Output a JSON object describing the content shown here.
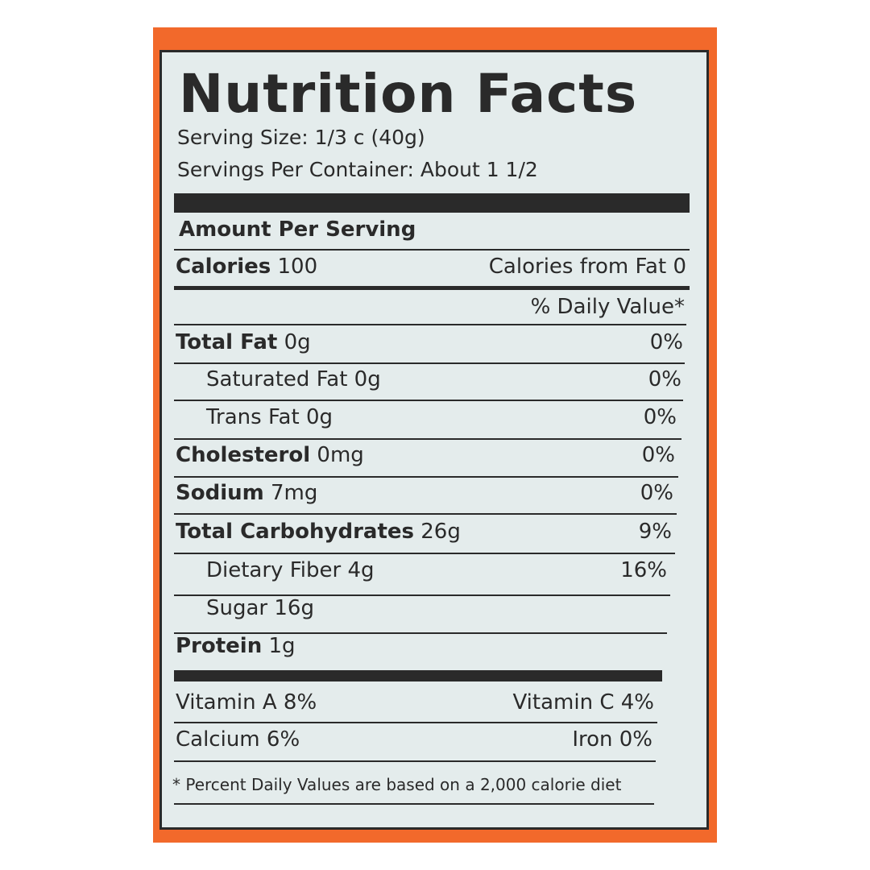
{
  "title": "Nutrition Facts",
  "serving_size": "Serving Size: 1/3 c (40g)",
  "servings_per_container": "Servings Per Container: About 1 1/2",
  "amount_per_serving": "Amount Per Serving",
  "calories": {
    "label": "Calories",
    "value": "100",
    "from_fat": "Calories from Fat 0"
  },
  "daily_value_header": "% Daily Value*",
  "nutrients": [
    {
      "label": "Total Fat",
      "amount": "0g",
      "dv": "0%"
    },
    {
      "label": "Saturated Fat",
      "amount": "0g",
      "dv": "0%"
    },
    {
      "label": "Trans Fat",
      "amount": "0g",
      "dv": "0%"
    },
    {
      "label": "Cholesterol",
      "amount": "0mg",
      "dv": "0%"
    },
    {
      "label": "Sodium",
      "amount": "7mg",
      "dv": "0%"
    },
    {
      "label": "Total Carbohydrates",
      "amount": "26g",
      "dv": "9%"
    },
    {
      "label": "Dietary Fiber",
      "amount": "4g",
      "dv": "16%"
    },
    {
      "label": "Sugar",
      "amount": "16g",
      "dv": ""
    },
    {
      "label": "Protein",
      "amount": "1g",
      "dv": ""
    }
  ],
  "vitamins": [
    {
      "left": "Vitamin A 8%",
      "right": "Vitamin C 4%"
    },
    {
      "left": "Calcium 6%",
      "right": "Iron 0%"
    }
  ],
  "footnote": "* Percent Daily Values are based on a 2,000 calorie diet",
  "colors": {
    "package": "#f2692b",
    "label": "#e4ecec",
    "ink": "#2a2a2a"
  }
}
